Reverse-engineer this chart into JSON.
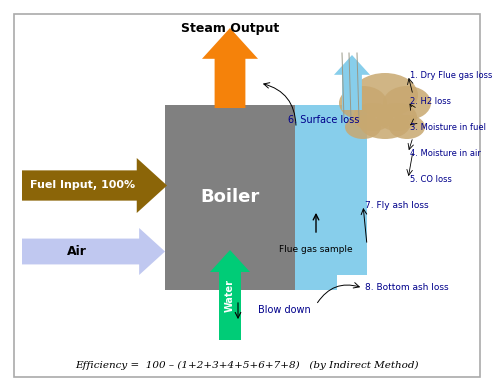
{
  "background_color": "#ffffff",
  "boiler_color": "#808080",
  "boiler_label": "Boiler",
  "steam_color": "#f5820a",
  "steam_label": "Steam Output",
  "fuel_color": "#8B6508",
  "fuel_label": "Fuel Input, 100%",
  "air_color": "#c0c8f0",
  "air_label": "Air",
  "water_color": "#00cc77",
  "water_label": "Water",
  "flue_color": "#87ceeb",
  "flue_label": "Flue gas sample",
  "smoke_color": "#c8a870",
  "loss_color": "#00008B",
  "blowdown_label": "Blow down",
  "surface_label": "6. Surface loss",
  "loss7_label": "7. Fly ash loss",
  "loss8_label": "8. Bottom ash loss",
  "losses": [
    "1. Dry Flue gas loss",
    "2. H2 loss",
    "3. Moisture in fuel",
    "4. Moisture in air",
    "5. CO loss"
  ],
  "efficiency_text": "Efficiency =  100 – (1+2+3+4+5+6+7+8)   (by Indirect Method)"
}
